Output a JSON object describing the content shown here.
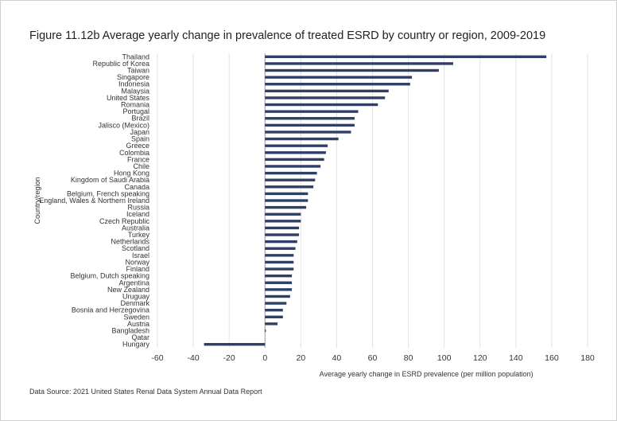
{
  "title": "Figure 11.12b Average yearly change in prevalence of treated ESRD by country or region, 2009-2019",
  "source": "Data Source: 2021 United States Renal Data System Annual Data Report",
  "chart_data": {
    "type": "bar",
    "orientation": "horizontal",
    "xlabel": "Average yearly change in ESRD prevalence (per million population)",
    "ylabel": "Country/region",
    "xlim": [
      -60,
      180
    ],
    "xticks": [
      -60,
      -40,
      -20,
      0,
      20,
      40,
      60,
      80,
      100,
      120,
      140,
      160,
      180
    ],
    "grid": "vertical",
    "bar_color": "#2e3f66",
    "categories": [
      "Thailand",
      "Republic of Korea",
      "Taiwan",
      "Singapore",
      "Indonesia",
      "Malaysia",
      "United States",
      "Romania",
      "Portugal",
      "Brazil",
      "Jalisco (Mexico)",
      "Japan",
      "Spain",
      "Greece",
      "Colombia",
      "France",
      "Chile",
      "Hong Kong",
      "Kingdom of Saudi Arabia",
      "Canada",
      "Belgium, French speaking",
      "England, Wales & Northern Ireland",
      "Russia",
      "Iceland",
      "Czech Republic",
      "Australia",
      "Turkey",
      "Netherlands",
      "Scotland",
      "Israel",
      "Norway",
      "Finland",
      "Belgium, Dutch speaking",
      "Argentina",
      "New Zealand",
      "Uruguay",
      "Denmark",
      "Bosnia and Herzegovina",
      "Sweden",
      "Austria",
      "Bangladesh",
      "Qatar",
      "Hungary"
    ],
    "values": [
      157,
      105,
      97,
      82,
      81,
      69,
      67,
      63,
      52,
      50,
      50,
      48,
      41,
      35,
      34,
      33,
      31,
      29,
      28,
      27,
      24,
      24,
      23,
      20,
      20,
      19,
      19,
      18,
      17,
      16,
      16,
      16,
      15,
      15,
      15,
      14,
      12,
      10,
      10,
      7,
      0.5,
      0,
      -34
    ]
  }
}
